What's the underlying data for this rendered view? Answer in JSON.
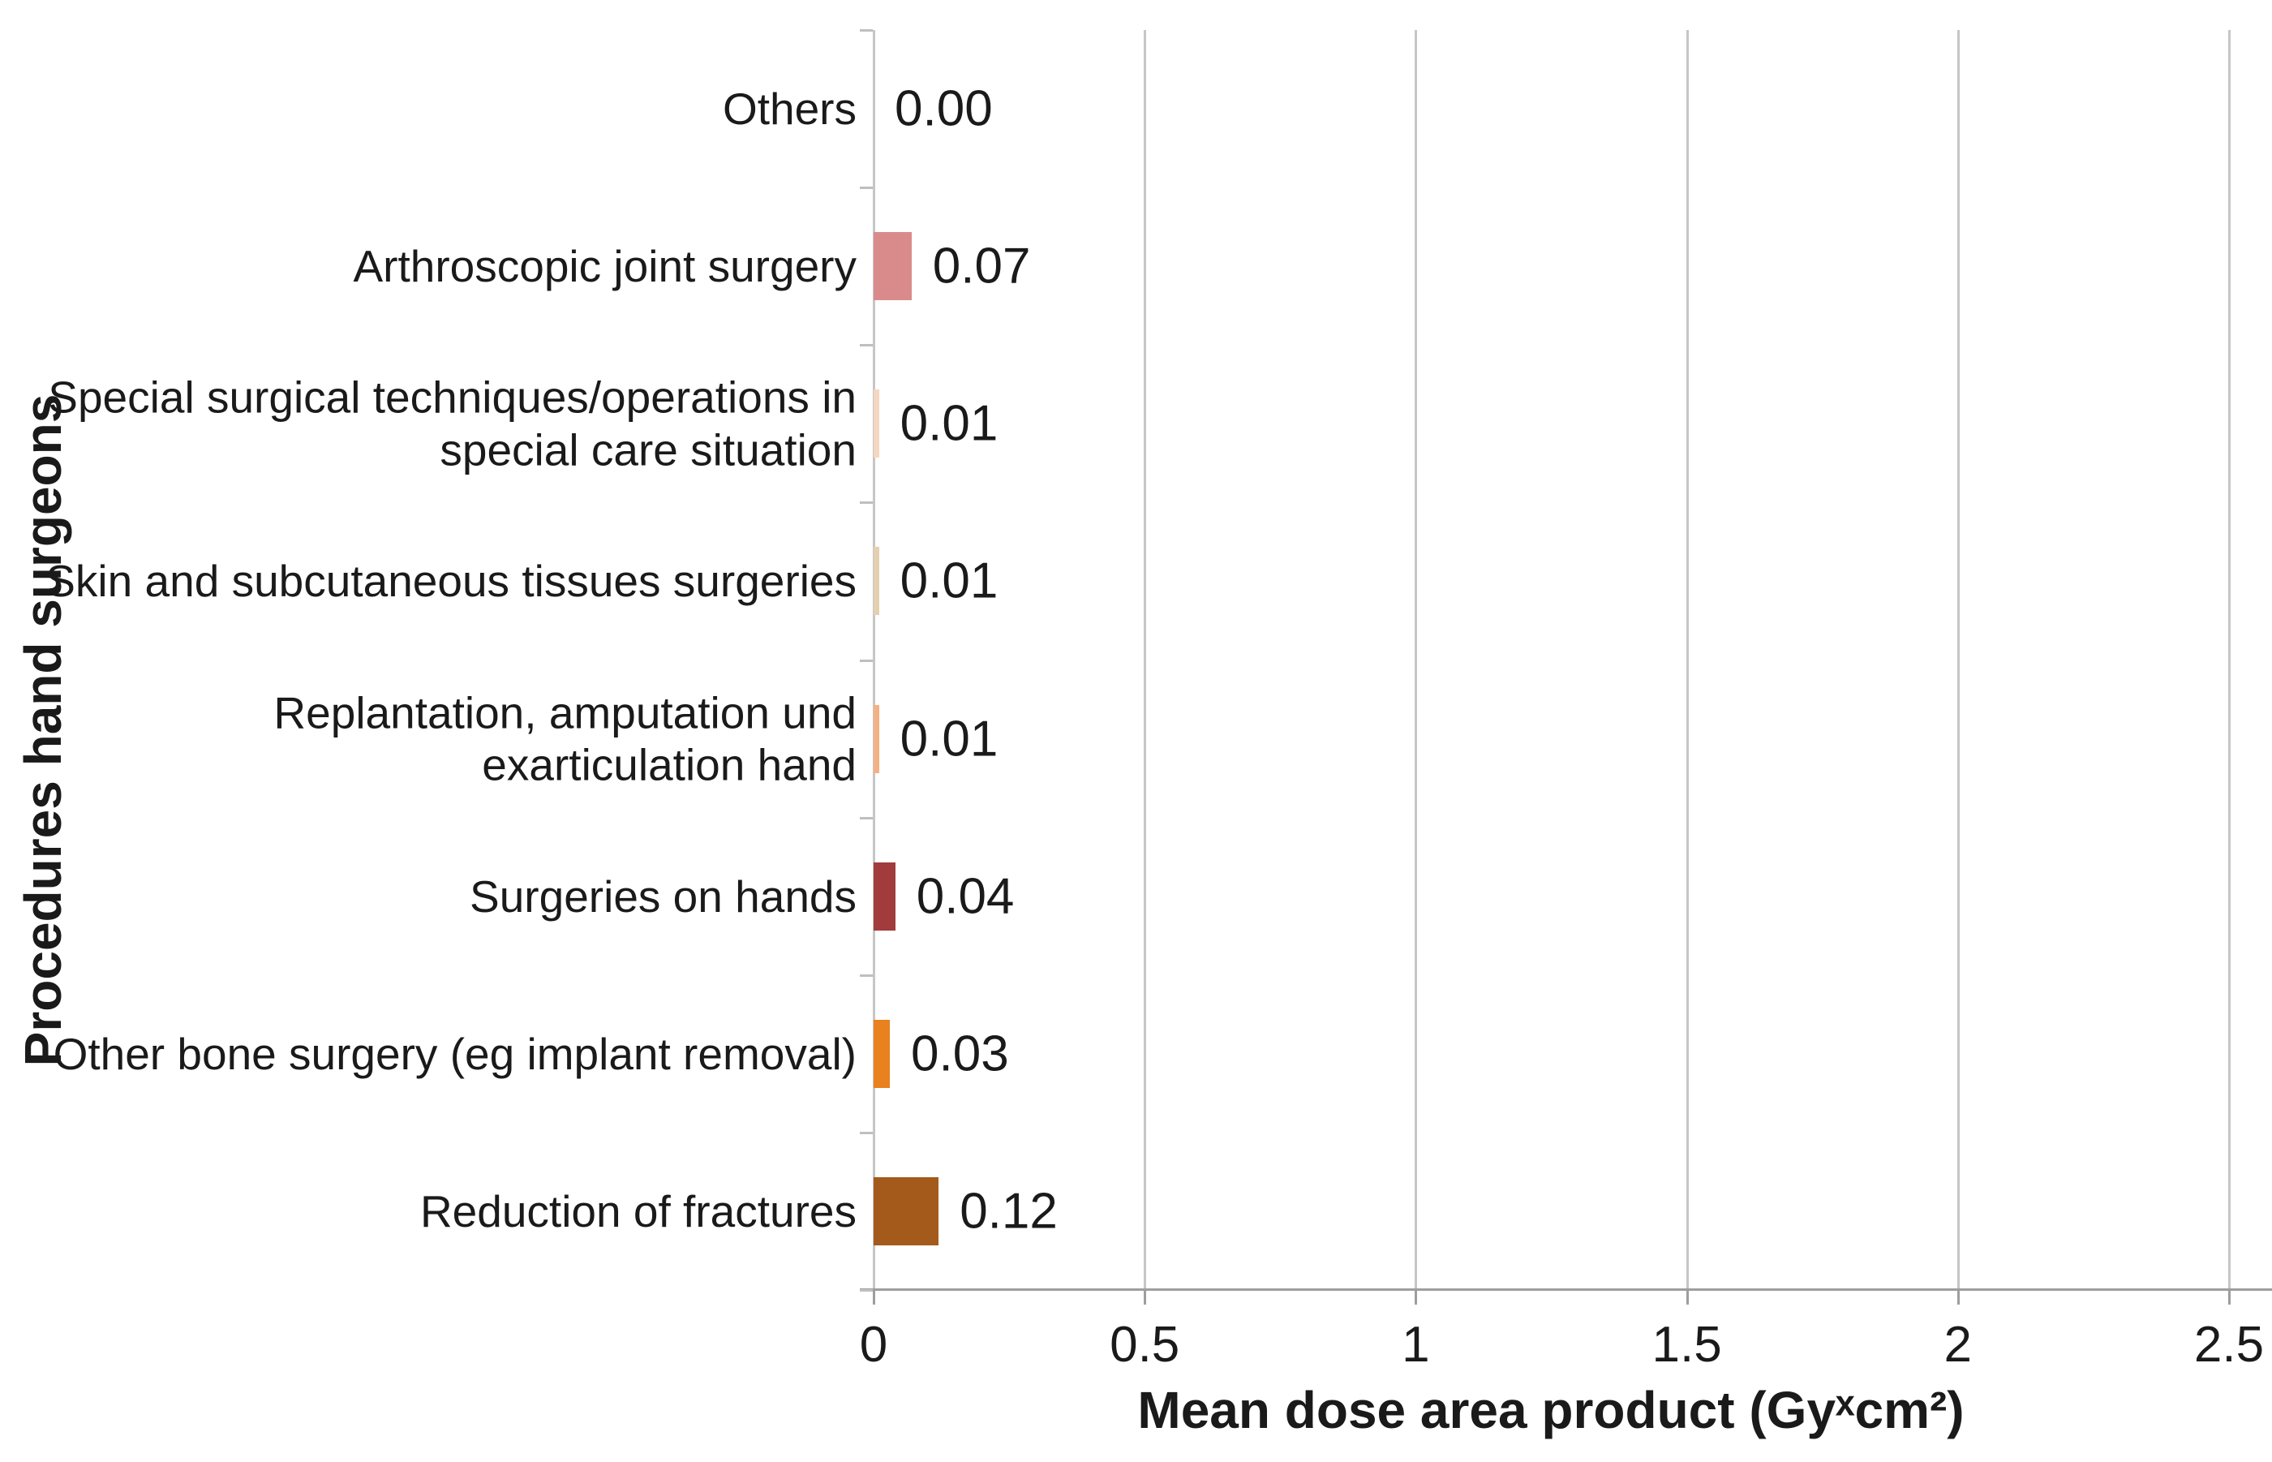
{
  "chart_data": {
    "type": "bar",
    "orientation": "horizontal",
    "title": "",
    "xlabel": "Mean dose area product (Gyˣcm²)",
    "ylabel": "Procedures hand surgeons",
    "xlim": [
      0,
      2.5
    ],
    "xticks": [
      0,
      0.5,
      1,
      1.5,
      2,
      2.5
    ],
    "xtick_labels": [
      "0",
      "0.5",
      "1",
      "1.5",
      "2",
      "2.5"
    ],
    "grid": true,
    "legend": false,
    "categories": [
      "Others",
      "Arthroscopic joint surgery",
      "Special surgical techniques/operations in\nspecial care situation",
      "Skin and subcutaneous tissues surgeries",
      "Replantation, amputation und\nexarticulation hand",
      "Surgeries on hands",
      "Other bone surgery (eg implant removal)",
      "Reduction of fractures"
    ],
    "values": [
      0.0,
      0.07,
      0.01,
      0.01,
      0.01,
      0.04,
      0.03,
      0.12
    ],
    "value_labels": [
      "0.00",
      "0.07",
      "0.01",
      "0.01",
      "0.01",
      "0.04",
      "0.03",
      "0.12"
    ],
    "bar_colors": [
      null,
      "#D98B8B",
      "#F5D7C0",
      "#E4D0B0",
      "#F4B183",
      "#A23B3B",
      "#E8811E",
      "#A45A1B"
    ]
  },
  "colors": {
    "background": "#FFFFFF",
    "text": "#1A1A1A",
    "grid": "#C6C6C6",
    "axis": "#9E9E9E",
    "y_tick": "#BFBFBF"
  }
}
